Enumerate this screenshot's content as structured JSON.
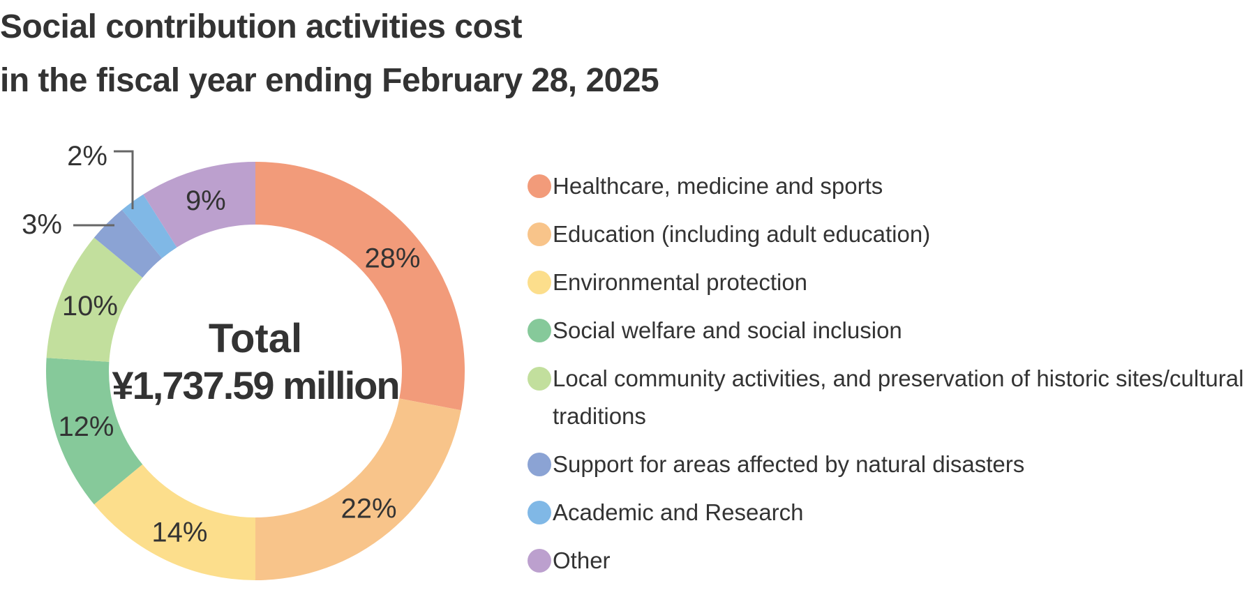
{
  "title": {
    "line1": "Social contribution activities cost",
    "line2": "in the fiscal year ending February 28, 2025"
  },
  "center": {
    "label": "Total",
    "value": "¥1,737.59 million"
  },
  "legend": [
    {
      "label": "Healthcare, medicine and sports",
      "color": "#F29B7A"
    },
    {
      "label": "Education (including adult education)",
      "color": "#F8C48A"
    },
    {
      "label": "Environmental protection",
      "color": "#FCDE8C"
    },
    {
      "label": "Social welfare and social inclusion",
      "color": "#86C99A"
    },
    {
      "label": "Local community activities, and preservation of historic sites/cultural traditions",
      "color": "#C2DF9D"
    },
    {
      "label": "Support for areas affected by natural disasters",
      "color": "#8BA3D4"
    },
    {
      "label": "Academic and Research",
      "color": "#80B8E6"
    },
    {
      "label": "Other",
      "color": "#BCA0CE"
    }
  ],
  "chart_data": {
    "type": "pie",
    "subtype": "donut",
    "title": "Social contribution activities cost in the fiscal year ending February 28, 2025",
    "center_text": "Total ¥1,737.59 million",
    "total": 1737.59,
    "unit": "¥ million",
    "categories": [
      "Healthcare, medicine and sports",
      "Education (including adult education)",
      "Environmental protection",
      "Social welfare and social inclusion",
      "Local community activities, and preservation of historic sites/cultural traditions",
      "Support for areas affected by natural disasters",
      "Academic and Research",
      "Other"
    ],
    "values": [
      28,
      22,
      14,
      12,
      10,
      3,
      2,
      9
    ],
    "labels": [
      "28%",
      "22%",
      "14%",
      "12%",
      "10%",
      "3%",
      "2%",
      "9%"
    ],
    "colors": [
      "#F29B7A",
      "#F8C48A",
      "#FCDE8C",
      "#86C99A",
      "#C2DF9D",
      "#8BA3D4",
      "#80B8E6",
      "#BCA0CE"
    ],
    "start_angle": "12 o'clock, clockwise",
    "legend_position": "right"
  }
}
